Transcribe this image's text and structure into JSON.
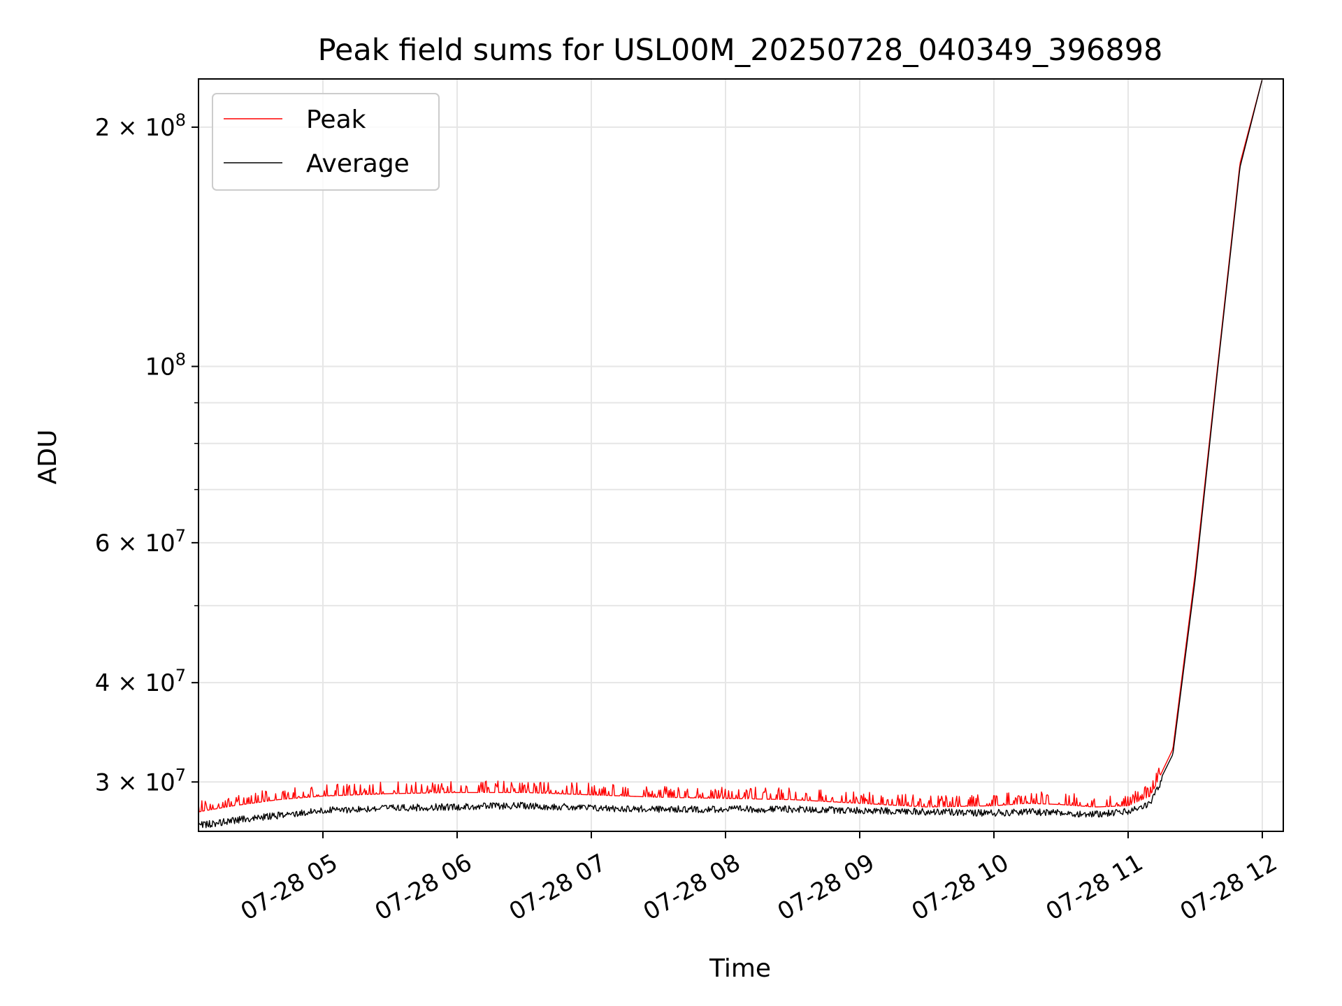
{
  "chart_data": {
    "type": "line",
    "title": "Peak field sums for USL00M_20250728_040349_396898",
    "xlabel": "Time",
    "ylabel": "ADU",
    "yscale": "log",
    "grid": true,
    "legend_position": "top-left",
    "x_tick_labels": [
      "07-28 05",
      "07-28 06",
      "07-28 07",
      "07-28 08",
      "07-28 09",
      "07-28 10",
      "07-28 11",
      "07-28 12"
    ],
    "x_range": [
      "2025-07-28 04:03:49",
      "2025-07-28 12:00"
    ],
    "y_range": [
      26000000,
      230000000
    ],
    "y_major_ticks": [
      {
        "value": 30000000,
        "mantissa": "3",
        "exp": "7"
      },
      {
        "value": 40000000,
        "mantissa": "4",
        "exp": "7"
      },
      {
        "value": 60000000,
        "mantissa": "6",
        "exp": "7"
      },
      {
        "value": 100000000,
        "mantissa": "",
        "exp": "8"
      },
      {
        "value": 200000000,
        "mantissa": "2",
        "exp": "8"
      }
    ],
    "y_minor_ticks": [
      50000000,
      70000000,
      80000000,
      90000000
    ],
    "series": [
      {
        "name": "Peak",
        "color": "#ff0000",
        "x": [
          "04:04",
          "04:20",
          "04:40",
          "05:00",
          "05:30",
          "06:00",
          "06:30",
          "07:00",
          "07:30",
          "08:00",
          "08:30",
          "09:00",
          "09:30",
          "10:00",
          "10:15",
          "10:30",
          "10:45",
          "11:00",
          "11:10",
          "11:20",
          "11:30",
          "11:40",
          "11:50",
          "12:00"
        ],
        "values": [
          27500000,
          28000000,
          28500000,
          28800000,
          29000000,
          29100000,
          29100000,
          28900000,
          28700000,
          28600000,
          28500000,
          28200000,
          27900000,
          28000000,
          28200000,
          28100000,
          27900000,
          28000000,
          28800000,
          33000000,
          55000000,
          100000000,
          180000000,
          230000000
        ]
      },
      {
        "name": "Average",
        "color": "#000000",
        "x": [
          "04:04",
          "04:20",
          "04:40",
          "05:00",
          "05:30",
          "06:00",
          "06:30",
          "07:00",
          "07:30",
          "08:00",
          "08:30",
          "09:00",
          "09:30",
          "10:00",
          "10:15",
          "10:30",
          "10:45",
          "11:00",
          "11:10",
          "11:20",
          "11:30",
          "11:40",
          "11:50",
          "12:00"
        ],
        "values": [
          26700000,
          27100000,
          27500000,
          27900000,
          28100000,
          28200000,
          28300000,
          28100000,
          28000000,
          28000000,
          28000000,
          27900000,
          27800000,
          27700000,
          27800000,
          27700000,
          27600000,
          27800000,
          28500000,
          32500000,
          54000000,
          99000000,
          178000000,
          230000000
        ]
      }
    ]
  }
}
